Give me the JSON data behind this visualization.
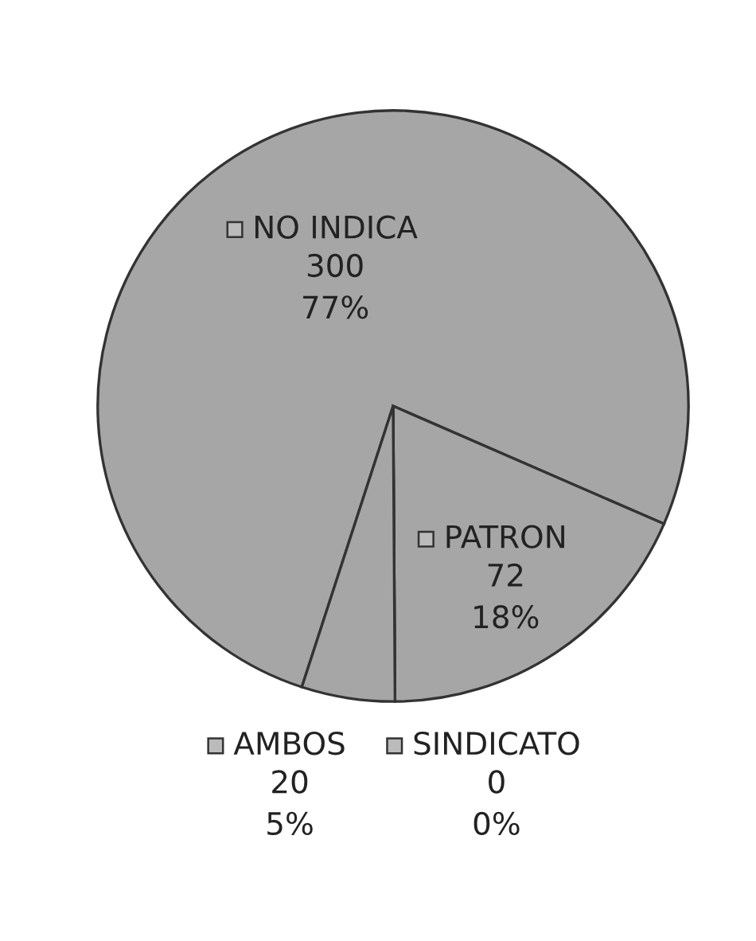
{
  "chart_data": {
    "type": "pie",
    "categories": [
      "NO INDICA",
      "PATRON",
      "SINDICATO",
      "AMBOS"
    ],
    "values": [
      300,
      72,
      0,
      20
    ],
    "colors": [
      "#a6a6a6",
      "#a6a6a6",
      "#a6a6a6",
      "#a6a6a6"
    ],
    "value_labels": [
      "300\n77%",
      "72\n18%",
      "0\n0%",
      "20\n5%"
    ]
  }
}
